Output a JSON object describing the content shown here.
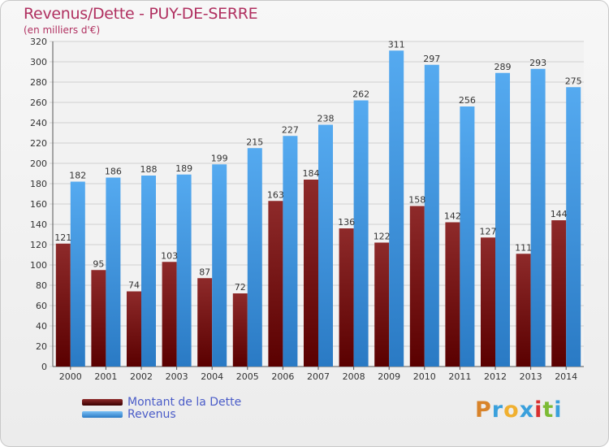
{
  "header": {
    "title": "Revenus/Dette - PUY-DE-SERRE",
    "subtitle": "(en milliers d'€)"
  },
  "legend": {
    "items": [
      {
        "label": "Montant de la Dette",
        "color": "#7a1010"
      },
      {
        "label": "Revenus",
        "color": "#3a96e0"
      }
    ]
  },
  "logo": {
    "text": "Proxiti",
    "colors": [
      "#d8832a",
      "#3aa0dc",
      "#f0b030",
      "#3aa0dc",
      "#d83030",
      "#7dbb35",
      "#3aa0dc"
    ]
  },
  "chart_data": {
    "type": "bar",
    "title": "Revenus/Dette - PUY-DE-SERRE",
    "subtitle": "(en milliers d'€)",
    "categories": [
      "2000",
      "2001",
      "2002",
      "2003",
      "2004",
      "2005",
      "2006",
      "2007",
      "2008",
      "2009",
      "2010",
      "2011",
      "2012",
      "2013",
      "2014"
    ],
    "series": [
      {
        "name": "Montant de la Dette",
        "color": "#7a1010",
        "values": [
          121,
          95,
          74,
          103,
          87,
          72,
          163,
          184,
          136,
          122,
          158,
          142,
          127,
          111,
          144
        ]
      },
      {
        "name": "Revenus",
        "color": "#3a96e0",
        "values": [
          182,
          186,
          188,
          189,
          199,
          215,
          227,
          238,
          262,
          311,
          297,
          256,
          289,
          293,
          275
        ]
      }
    ],
    "ylim": [
      0,
      320
    ],
    "ytick_step": 20,
    "grid": true,
    "legend_position": "bottom-left"
  }
}
